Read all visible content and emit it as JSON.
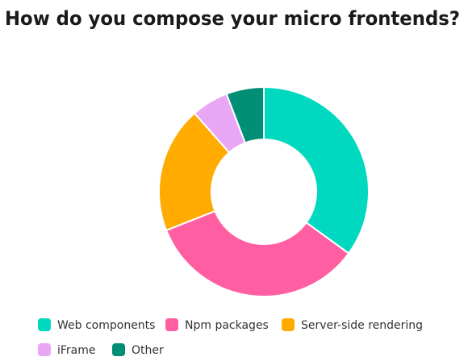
{
  "chart_data": {
    "type": "donut",
    "title": "How do you compose your micro frontends?",
    "series": [
      {
        "name": "Web components",
        "color": "#00d9c0",
        "values": [
          35
        ]
      },
      {
        "name": "Npm packages",
        "color": "#ff5fa2",
        "values": [
          34
        ]
      },
      {
        "name": "Server-side rendering",
        "color": "#ffab00",
        "values": [
          19.5
        ]
      },
      {
        "name": "iFrame",
        "color": "#e9a6f5",
        "values": [
          5.7
        ]
      },
      {
        "name": "Other",
        "color": "#008f76",
        "values": [
          5.8
        ]
      }
    ]
  }
}
